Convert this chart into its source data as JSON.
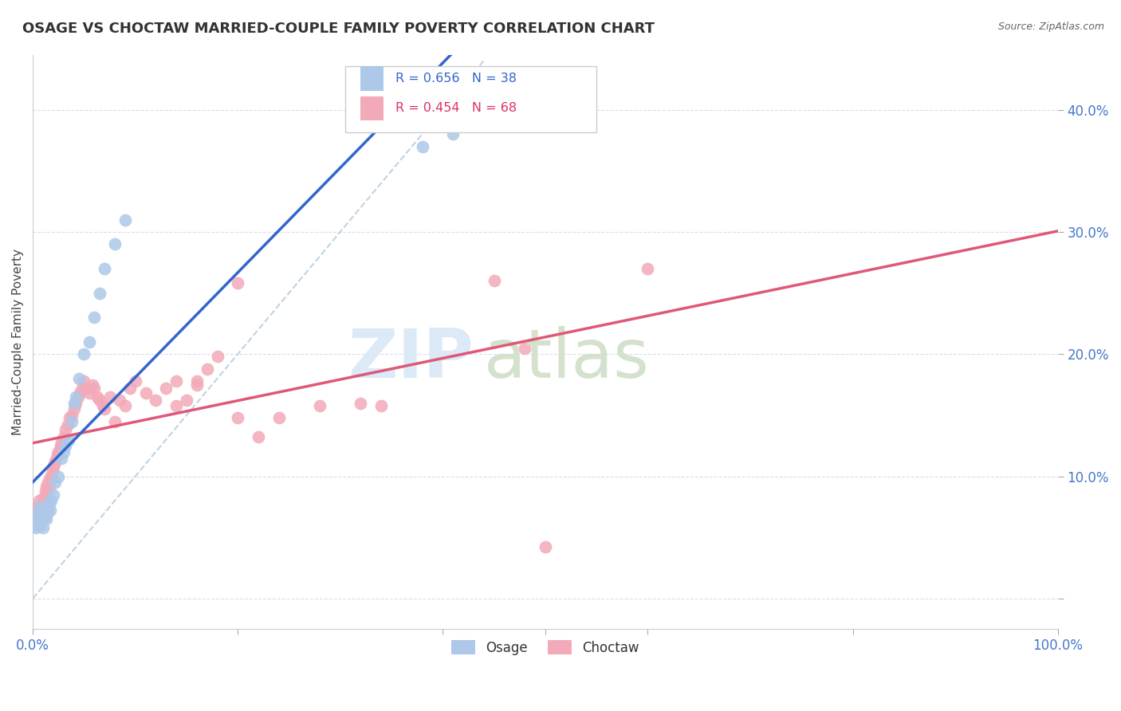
{
  "title": "OSAGE VS CHOCTAW MARRIED-COUPLE FAMILY POVERTY CORRELATION CHART",
  "source": "Source: ZipAtlas.com",
  "ylabel": "Married-Couple Family Poverty",
  "ytick_vals": [
    0.0,
    0.1,
    0.2,
    0.3,
    0.4
  ],
  "ytick_labels": [
    "",
    "10.0%",
    "20.0%",
    "30.0%",
    "40.0%"
  ],
  "xlim": [
    0.0,
    1.0
  ],
  "ylim": [
    -0.025,
    0.445
  ],
  "osage_R": 0.656,
  "osage_N": 38,
  "choctaw_R": 0.454,
  "choctaw_N": 68,
  "osage_color": "#adc8e8",
  "choctaw_color": "#f2aab8",
  "osage_line_color": "#3366cc",
  "choctaw_line_color": "#e05878",
  "diagonal_color": "#b8cfe0",
  "background_color": "#ffffff",
  "grid_color": "#d8dfe8",
  "tick_color": "#4477cc",
  "title_color": "#333333",
  "source_color": "#666666",
  "watermark_zip_color": "#d8e8f5",
  "watermark_atlas_color": "#d0dfc8",
  "legend_border_color": "#cccccc",
  "osage_x": [
    0.001,
    0.002,
    0.003,
    0.004,
    0.005,
    0.006,
    0.007,
    0.008,
    0.009,
    0.01,
    0.011,
    0.012,
    0.013,
    0.014,
    0.015,
    0.016,
    0.017,
    0.018,
    0.02,
    0.022,
    0.025,
    0.028,
    0.03,
    0.032,
    0.035,
    0.038,
    0.04,
    0.042,
    0.045,
    0.05,
    0.055,
    0.06,
    0.065,
    0.07,
    0.08,
    0.09,
    0.38,
    0.41
  ],
  "osage_y": [
    0.06,
    0.065,
    0.058,
    0.062,
    0.07,
    0.075,
    0.06,
    0.068,
    0.065,
    0.058,
    0.072,
    0.068,
    0.065,
    0.07,
    0.075,
    0.078,
    0.072,
    0.08,
    0.085,
    0.095,
    0.1,
    0.115,
    0.12,
    0.125,
    0.13,
    0.145,
    0.16,
    0.165,
    0.18,
    0.2,
    0.21,
    0.23,
    0.25,
    0.27,
    0.29,
    0.31,
    0.37,
    0.38
  ],
  "choctaw_x": [
    0.002,
    0.004,
    0.006,
    0.008,
    0.01,
    0.012,
    0.013,
    0.014,
    0.015,
    0.016,
    0.017,
    0.018,
    0.019,
    0.02,
    0.021,
    0.022,
    0.023,
    0.024,
    0.025,
    0.026,
    0.027,
    0.028,
    0.03,
    0.032,
    0.034,
    0.036,
    0.038,
    0.04,
    0.042,
    0.044,
    0.046,
    0.048,
    0.05,
    0.052,
    0.055,
    0.058,
    0.06,
    0.063,
    0.065,
    0.068,
    0.07,
    0.075,
    0.08,
    0.085,
    0.09,
    0.095,
    0.1,
    0.11,
    0.12,
    0.13,
    0.14,
    0.15,
    0.16,
    0.17,
    0.18,
    0.2,
    0.22,
    0.24,
    0.28,
    0.32,
    0.34,
    0.14,
    0.16,
    0.2,
    0.45,
    0.48,
    0.5,
    0.6
  ],
  "choctaw_y": [
    0.068,
    0.075,
    0.08,
    0.075,
    0.082,
    0.088,
    0.092,
    0.085,
    0.095,
    0.09,
    0.1,
    0.098,
    0.105,
    0.108,
    0.11,
    0.112,
    0.115,
    0.118,
    0.12,
    0.122,
    0.125,
    0.128,
    0.132,
    0.138,
    0.142,
    0.148,
    0.15,
    0.155,
    0.16,
    0.165,
    0.168,
    0.172,
    0.178,
    0.172,
    0.168,
    0.175,
    0.172,
    0.165,
    0.162,
    0.158,
    0.155,
    0.165,
    0.145,
    0.162,
    0.158,
    0.172,
    0.178,
    0.168,
    0.162,
    0.172,
    0.158,
    0.162,
    0.178,
    0.188,
    0.198,
    0.148,
    0.132,
    0.148,
    0.158,
    0.16,
    0.158,
    0.178,
    0.175,
    0.258,
    0.26,
    0.205,
    0.042,
    0.27
  ]
}
